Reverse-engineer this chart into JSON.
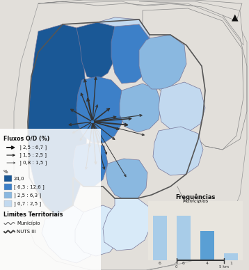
{
  "bg_color": "#cccac4",
  "legend_title_flux": "Fluxos O/D (%)",
  "legend_flux": [
    {
      "label": "] 2,5 : 6,7 ]",
      "lw": 2.2
    },
    {
      "label": "] 1,5 : 2,5 ]",
      "lw": 1.3
    },
    {
      "label": "] 0,8 : 1,5 ]",
      "lw": 0.7
    }
  ],
  "legend_pct_label": "%",
  "legend_pct": [
    {
      "label": "24,0",
      "color": "#1a5896"
    },
    {
      "label": "[ 6,3 : 12,6 ]",
      "color": "#3d80c8"
    },
    {
      "label": "] 2,5 : 6,3 ]",
      "color": "#8ab8e0"
    },
    {
      "label": "] 0,7 : 2,5 ]",
      "color": "#c2d9ef"
    }
  ],
  "legend_boundary_title": "Limites Territoriais",
  "legend_boundary": [
    {
      "label": "Município"
    },
    {
      "label": "NUTS III"
    }
  ],
  "freq_title": "Frequências",
  "freq_subtitle": "Municípios",
  "freq_values": [
    6,
    6,
    4,
    1
  ],
  "freq_labels": [
    "6",
    "6",
    "4",
    "1"
  ],
  "freq_bar_colors": [
    "#a8cce8",
    "#a8cce8",
    "#5a9fd4",
    "#a8cce8"
  ],
  "map_colors": {
    "darkest": "#1a5896",
    "dark": "#3d80c8",
    "medium": "#8ab8e0",
    "light": "#c2d9ef",
    "vlight": "#d8eaf8",
    "outer": "#cccac4",
    "sea": "#cccac4",
    "land_bg": "#e2dfda"
  },
  "arrow_color": "#333333",
  "north_arrow": "▲",
  "mun_edge": "#777799",
  "nuts_edge": "#555555"
}
